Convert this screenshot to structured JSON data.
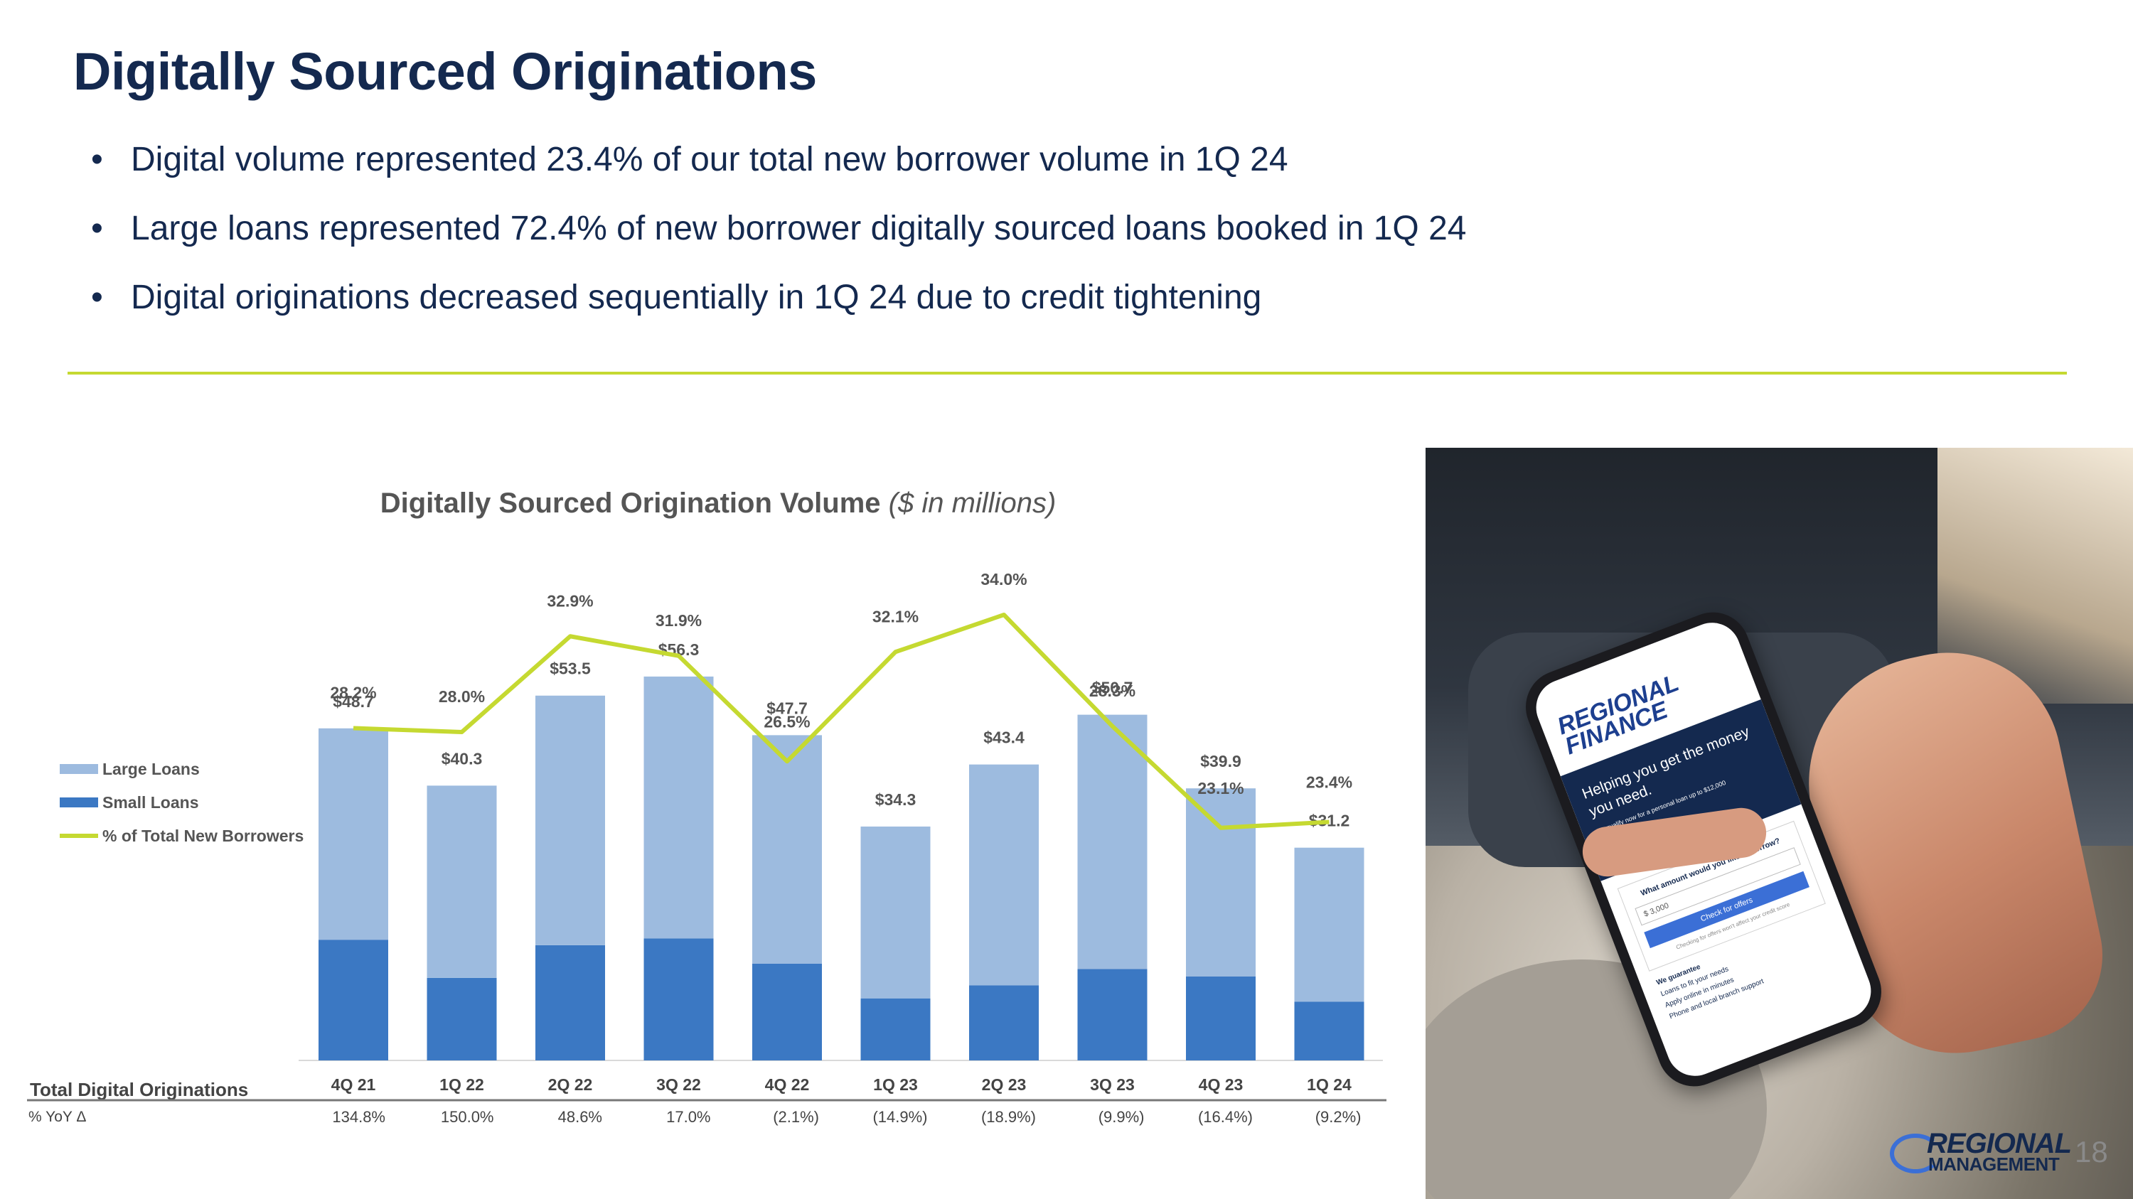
{
  "slide": {
    "title": "Digitally Sourced Originations",
    "bullets": [
      "Digital volume represented 23.4% of our total new borrower volume in 1Q 24",
      "Large loans represented 72.4% of new borrower digitally sourced loans booked in 1Q 24",
      "Digital originations decreased sequentially in 1Q 24 due to credit tightening"
    ],
    "bullet_glyph": "•",
    "page_number": "18",
    "footer_logo": {
      "line1": "REGIONAL",
      "line2": "MANAGEMENT",
      "registered": "®"
    },
    "accent_color": "#c5d931",
    "title_color": "#14294f"
  },
  "photo": {
    "app_logo": [
      "REGIONAL",
      "FINANCE"
    ],
    "headline": "Helping you get the money you need.",
    "subline": "Prequalify now for a personal loan up to $12,000",
    "question": "What amount would you like to borrow?",
    "amount": "$ 3,000",
    "button": "Check for offers",
    "note": "Checking for offers won't affect your credit score",
    "guarantee_title": "We guarantee",
    "guarantees": [
      "Loans to fit your needs",
      "Apply online in minutes",
      "Phone and local branch support"
    ]
  },
  "chart_data": {
    "type": "bar",
    "stacked": true,
    "title": "Digitally Sourced Origination Volume",
    "subtitle": "($ in millions)",
    "categories": [
      "4Q 21",
      "1Q 22",
      "2Q 22",
      "3Q 22",
      "4Q 22",
      "1Q 23",
      "2Q 23",
      "3Q 23",
      "4Q 23",
      "1Q 24"
    ],
    "series": [
      {
        "name": "Small Loans",
        "color": "#3b78c3",
        "values": [
          17.7,
          12.1,
          16.9,
          17.9,
          14.2,
          9.1,
          11.0,
          13.4,
          12.3,
          8.6
        ]
      },
      {
        "name": "Large Loans",
        "color": "#9dbbdf",
        "values": [
          31.0,
          28.2,
          36.6,
          38.4,
          33.5,
          25.2,
          32.4,
          37.3,
          27.6,
          22.6
        ]
      }
    ],
    "totals": [
      48.7,
      40.3,
      53.5,
      56.3,
      47.7,
      34.3,
      43.4,
      50.7,
      39.9,
      31.2
    ],
    "total_labels": [
      "$48.7",
      "$40.3",
      "$53.5",
      "$56.3",
      "$47.7",
      "$34.3",
      "$43.4",
      "$50.7",
      "$39.9",
      "$31.2"
    ],
    "line_series": {
      "name": "% of Total New Borrowers",
      "color": "#c5d931",
      "values": [
        28.2,
        28.0,
        32.9,
        31.9,
        26.5,
        32.1,
        34.0,
        28.3,
        23.1,
        23.4
      ],
      "labels": [
        "28.2%",
        "28.0%",
        "32.9%",
        "31.9%",
        "26.5%",
        "32.1%",
        "34.0%",
        "28.3%",
        "23.1%",
        "23.4%"
      ]
    },
    "ylim": [
      0,
      60
    ],
    "line_ylim": [
      0,
      60
    ],
    "legend": {
      "position": "left",
      "items": [
        "Large Loans",
        "Small Loans",
        "% of Total New Borrowers"
      ]
    },
    "table": {
      "row1_label": "Total Digital Originations",
      "row2_label": "% YoY Δ",
      "yoy": [
        "134.8%",
        "150.0%",
        "48.6%",
        "17.0%",
        "(2.1%)",
        "(14.9%)",
        "(18.9%)",
        "(9.9%)",
        "(16.4%)",
        "(9.2%)"
      ]
    },
    "grid": false
  }
}
